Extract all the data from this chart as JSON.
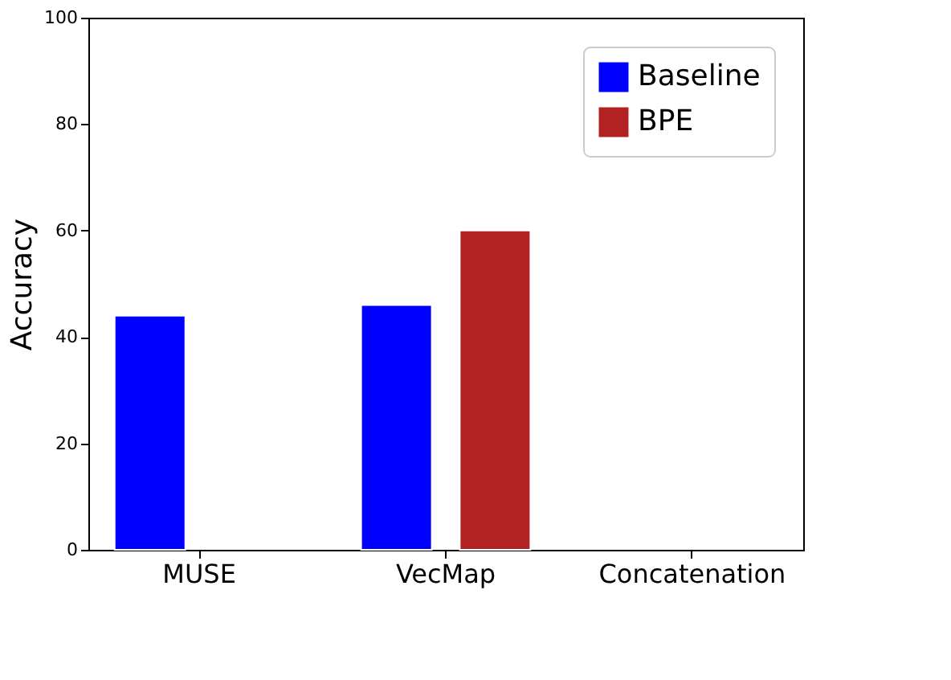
{
  "chart_data": {
    "type": "bar",
    "ylabel": "Accuracy",
    "categories": [
      "MUSE",
      "VecMap",
      "Concatenation"
    ],
    "series": [
      {
        "name": "Baseline",
        "color": "#0000ff",
        "values": [
          44,
          46,
          null
        ]
      },
      {
        "name": "BPE",
        "color": "#b22222",
        "values": [
          null,
          60,
          null
        ]
      }
    ],
    "ylim": [
      0,
      100
    ],
    "yticks": [
      0,
      20,
      40,
      60,
      80,
      100
    ],
    "grid": false,
    "legend": "top right"
  }
}
